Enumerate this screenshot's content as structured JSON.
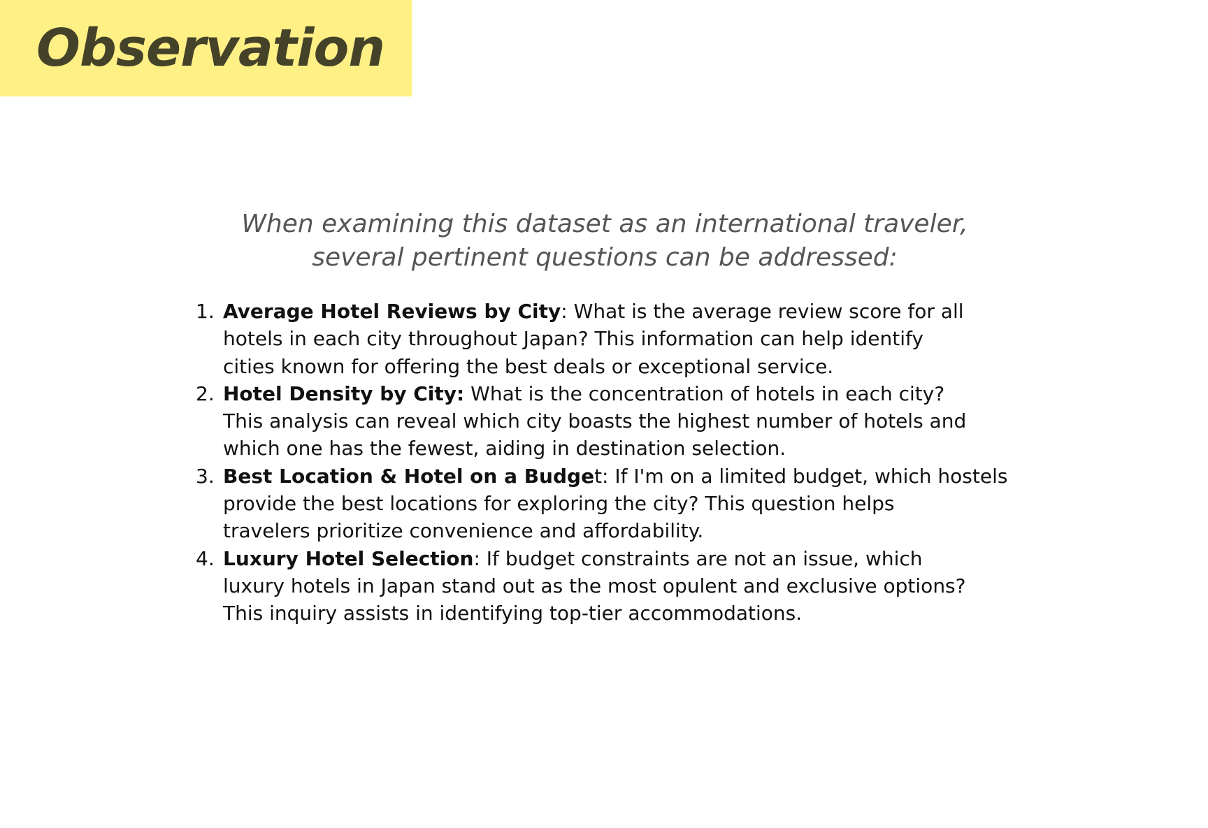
{
  "title": "Observation",
  "intro": {
    "line1": "When examining this dataset as an international traveler,",
    "line2": "several pertinent questions can be addressed:"
  },
  "questions": [
    {
      "number": "1.",
      "bold": "Average Hotel Reviews by City",
      "rest": ": What is the average review score for all",
      "line2": "hotels in each city throughout Japan? This information can help identify",
      "line3": "cities known for offering the best deals or exceptional service."
    },
    {
      "number": "2.",
      "bold": "Hotel Density by City:",
      "rest": " What is the concentration of hotels in each city?",
      "line2": "This analysis can reveal which city boasts the highest number of hotels and",
      "line3": "which one has the fewest, aiding in destination selection."
    },
    {
      "number": "3.",
      "bold": "Best Location & Hotel on a Budge",
      "rest": "t: If I'm on a limited budget, which hostels",
      "line2": "provide the best locations for exploring the city? This question helps",
      "line3": "travelers prioritize convenience and affordability."
    },
    {
      "number": "4.",
      "bold": "Luxury Hotel Selection",
      "rest": ": If budget constraints are not an issue, which",
      "line2": "luxury hotels in Japan stand out as the most opulent and exclusive options?",
      "line3": "This inquiry assists in identifying top-tier accommodations."
    }
  ],
  "colors": {
    "banner": "#fff085",
    "title_text": "#45422a",
    "intro_text": "#555555",
    "body_text": "#111111",
    "background": "#ffffff"
  }
}
